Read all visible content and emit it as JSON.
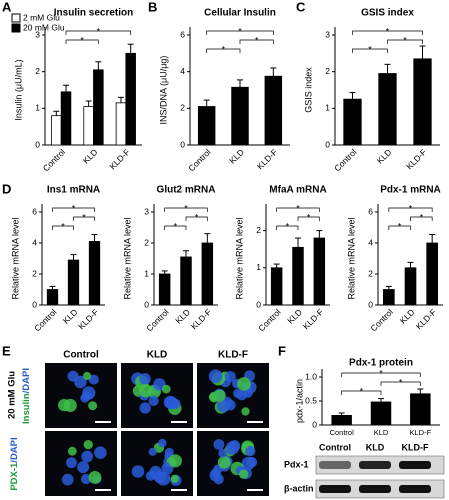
{
  "panel_labels": [
    "A",
    "B",
    "C",
    "D",
    "E",
    "F"
  ],
  "chart_data": [
    {
      "type": "bar",
      "title": "Insulin secretion",
      "y_label": "Insulin (μU/mL)",
      "categories": [
        "Control",
        "KLD",
        "KLD-F"
      ],
      "series": [
        {
          "name": "2 mM Glu",
          "color": "#ffffff",
          "values": [
            0.8,
            1.05,
            1.15
          ],
          "errors": [
            0.12,
            0.15,
            0.15
          ]
        },
        {
          "name": "20 mM Glu",
          "color": "#000000",
          "values": [
            1.45,
            2.05,
            2.5
          ],
          "errors": [
            0.18,
            0.22,
            0.25
          ]
        }
      ],
      "ylim": [
        0,
        3
      ],
      "yticks": [
        0,
        1,
        2,
        3
      ],
      "sig_label": "*",
      "legend": "upper left"
    },
    {
      "type": "bar",
      "title": "Cellular Insulin",
      "y_label": "INS/DNA (μU/μg)",
      "categories": [
        "Control",
        "KLD",
        "KLD-F"
      ],
      "values": [
        2.1,
        3.15,
        3.75
      ],
      "errors": [
        0.35,
        0.4,
        0.45
      ],
      "color": "#000000",
      "ylim": [
        0,
        6
      ],
      "yticks": [
        0,
        2,
        4,
        6
      ],
      "sig_label": "*"
    },
    {
      "type": "bar",
      "title": "GSIS index",
      "y_label": "GSIS index",
      "categories": [
        "Control",
        "KLD",
        "KLD-F"
      ],
      "values": [
        1.25,
        1.95,
        2.35
      ],
      "errors": [
        0.18,
        0.25,
        0.35
      ],
      "color": "#000000",
      "ylim": [
        0,
        3
      ],
      "yticks": [
        0,
        1,
        2,
        3
      ],
      "sig_label": "*"
    },
    {
      "type": "bar",
      "title": "Ins1 mRNA",
      "y_label": "Relative mRNA level",
      "categories": [
        "Control",
        "KLD",
        "KLD-F"
      ],
      "values": [
        1.0,
        2.9,
        4.1
      ],
      "errors": [
        0.2,
        0.35,
        0.45
      ],
      "color": "#000000",
      "ylim": [
        0,
        6
      ],
      "yticks": [
        0,
        2,
        4,
        6
      ],
      "sig_label": "*"
    },
    {
      "type": "bar",
      "title": "Glut2 mRNA",
      "y_label": "Relative mRNA level",
      "categories": [
        "Control",
        "KLD",
        "KLD-F"
      ],
      "values": [
        1.0,
        1.55,
        2.0
      ],
      "errors": [
        0.1,
        0.2,
        0.3
      ],
      "color": "#000000",
      "ylim": [
        0,
        3
      ],
      "yticks": [
        0,
        1,
        2,
        3
      ],
      "sig_label": "*"
    },
    {
      "type": "bar",
      "title": "MfaA mRNA",
      "y_label": "Relative mRNA level",
      "categories": [
        "Control",
        "KLD",
        "KLD-F"
      ],
      "values": [
        1.0,
        1.55,
        1.8
      ],
      "errors": [
        0.1,
        0.25,
        0.2
      ],
      "color": "#000000",
      "ylim": [
        0,
        2.5
      ],
      "yticks": [
        0,
        1,
        2
      ],
      "sig_label": "*"
    },
    {
      "type": "bar",
      "title": "Pdx-1 mRNA",
      "y_label": "Relative mRNA level",
      "categories": [
        "Control",
        "KLD",
        "KLD-F"
      ],
      "values": [
        1.0,
        2.4,
        4.0
      ],
      "errors": [
        0.2,
        0.35,
        0.55
      ],
      "color": "#000000",
      "ylim": [
        0,
        6
      ],
      "yticks": [
        0,
        2,
        4,
        6
      ],
      "sig_label": "*"
    },
    {
      "type": "bar",
      "title": "Pdx-1 protein",
      "y_label": "pdx-1/actin",
      "categories": [
        "Control",
        "KLD",
        "KLD-F"
      ],
      "values": [
        0.2,
        0.48,
        0.65
      ],
      "errors": [
        0.05,
        0.07,
        0.1
      ],
      "color": "#000000",
      "ylim": [
        0,
        1
      ],
      "yticks": [
        0,
        0.5,
        {
          "value": 1,
          "label": "1.0"
        }
      ],
      "sig_label": "*"
    }
  ],
  "panel_e": {
    "columns": [
      "Control",
      "KLD",
      "KLD-F"
    ],
    "condition": "20 mM Glu",
    "rows": [
      [
        "Insulin",
        "/DAPI"
      ],
      [
        "PDX-1",
        "/DAPI"
      ]
    ]
  },
  "blot": {
    "lanes": [
      "Control",
      "KLD",
      "KLD-F"
    ],
    "rows": [
      "Pdx-1",
      "β-actin"
    ]
  }
}
